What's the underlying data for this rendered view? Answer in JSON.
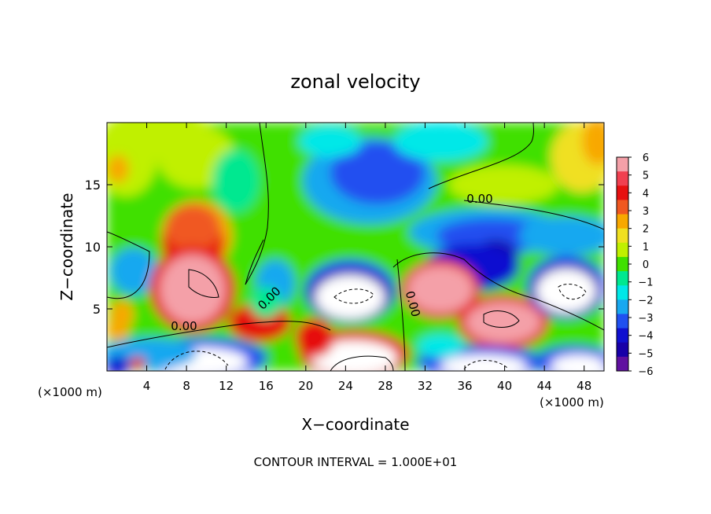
{
  "chart_data": {
    "type": "heatmap",
    "title": "zonal velocity",
    "xlabel": "X−coordinate",
    "ylabel": "Z−coordinate",
    "x_unit_left": "(×1000 m)",
    "x_unit_right": "(×1000 m)",
    "footer": "CONTOUR INTERVAL = 1.000E+01",
    "xlim": [
      0,
      50
    ],
    "ylim": [
      0,
      20
    ],
    "x_ticks": [
      4,
      8,
      12,
      16,
      20,
      24,
      28,
      32,
      36,
      40,
      44,
      48
    ],
    "y_ticks": [
      5,
      10,
      15
    ],
    "colorbar": {
      "min": -6,
      "max": 6,
      "labels": [
        "6",
        "5",
        "4",
        "3",
        "2",
        "1",
        "0",
        "−1",
        "−2",
        "−3",
        "−4",
        "−5",
        "−6"
      ],
      "colors": [
        "#f4a0a8",
        "#f04050",
        "#e61010",
        "#f05820",
        "#f8a800",
        "#f0e020",
        "#c0f000",
        "#40e000",
        "#00e890",
        "#00e8e8",
        "#18a8f0",
        "#2050f0",
        "#1010d0",
        "#1800a8",
        "#6010a0"
      ]
    },
    "contour_labels": [
      "0.00",
      "0.00",
      "0.00",
      "0.00"
    ]
  }
}
